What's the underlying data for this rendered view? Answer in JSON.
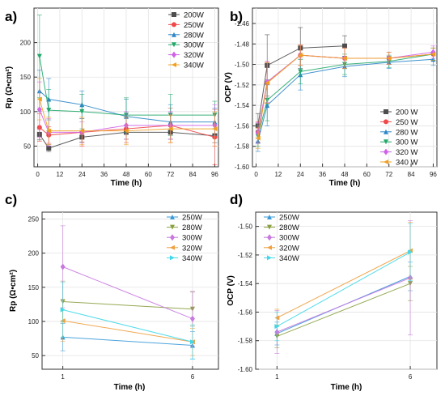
{
  "colors": {
    "200W": "#4d4d4d",
    "250W": "#f04848",
    "280W": "#2b86c8",
    "300W": "#22a86a",
    "320W": "#d060e8",
    "340W": "#f0a020",
    "panel_c_250W": "#3a9ad8",
    "panel_c_280W": "#8aa040",
    "panel_c_300W": "#c878e0",
    "panel_c_320W": "#f0a040",
    "panel_c_340W": "#40d8e8"
  },
  "chart_data": [
    {
      "panel": "a)",
      "type": "line",
      "xlabel": "Time (h)",
      "ylabel": "Rp (Ω•cm²)",
      "xlim": [
        -2,
        98
      ],
      "ylim": [
        20,
        250
      ],
      "xticks": [
        0,
        12,
        24,
        36,
        48,
        60,
        72,
        84,
        96
      ],
      "yticks": [
        50,
        100,
        150,
        200
      ],
      "legend_position": "top-right",
      "series": [
        {
          "name": "200W",
          "marker": "square",
          "x": [
            1,
            6,
            24,
            48,
            72,
            96
          ],
          "y": [
            67,
            47,
            63,
            70,
            70,
            65
          ],
          "err": [
            8,
            5,
            7,
            10,
            10,
            10
          ]
        },
        {
          "name": "250W",
          "marker": "circle",
          "x": [
            1,
            6,
            24,
            48,
            72,
            96
          ],
          "y": [
            77,
            66,
            70,
            75,
            80,
            63
          ],
          "err": [
            20,
            12,
            20,
            20,
            25,
            40
          ]
        },
        {
          "name": "280W",
          "marker": "triangle-up",
          "x": [
            1,
            6,
            24,
            48,
            72,
            96
          ],
          "y": [
            130,
            118,
            110,
            93,
            85,
            85
          ],
          "err": [
            30,
            30,
            20,
            25,
            25,
            20
          ]
        },
        {
          "name": "300W",
          "marker": "triangle-down",
          "x": [
            1,
            6,
            24,
            48,
            72,
            96
          ],
          "y": [
            180,
            102,
            100,
            95,
            95,
            95
          ],
          "err": [
            60,
            30,
            25,
            25,
            30,
            20
          ]
        },
        {
          "name": "320W",
          "marker": "diamond",
          "x": [
            1,
            6,
            24,
            48,
            72,
            96
          ],
          "y": [
            103,
            70,
            70,
            80,
            80,
            80
          ],
          "err": [
            40,
            20,
            15,
            20,
            20,
            30
          ]
        },
        {
          "name": "340W",
          "marker": "triangle-left",
          "x": [
            1,
            6,
            24,
            48,
            72,
            96
          ],
          "y": [
            118,
            72,
            72,
            72,
            75,
            75
          ],
          "err": [
            30,
            20,
            20,
            20,
            20,
            25
          ]
        }
      ]
    },
    {
      "panel": "b)",
      "type": "line",
      "xlabel": "Time (h)",
      "ylabel": "OCP (V)",
      "xlim": [
        -2,
        98
      ],
      "ylim": [
        -1.6,
        -1.445
      ],
      "xticks": [
        0,
        12,
        24,
        36,
        48,
        60,
        72,
        84,
        96
      ],
      "yticks": [
        -1.46,
        -1.48,
        -1.5,
        -1.52,
        -1.54,
        -1.56,
        -1.58,
        -1.6
      ],
      "legend_position": "bottom-right",
      "series": [
        {
          "name": "200 W",
          "marker": "square",
          "x": [
            1,
            6,
            24,
            48
          ],
          "y": [
            -1.56,
            -1.501,
            -1.484,
            -1.482
          ],
          "err": [
            0.012,
            0.03,
            0.02,
            0.01
          ]
        },
        {
          "name": "250 W",
          "marker": "circle",
          "x": [
            1,
            6,
            24,
            48,
            72,
            96
          ],
          "y": [
            -1.566,
            -1.518,
            -1.491,
            -1.494,
            -1.494,
            -1.49
          ],
          "err": [
            0.01,
            0.02,
            0.01,
            0.01,
            0.006,
            0.006
          ]
        },
        {
          "name": "280 W",
          "marker": "triangle-up",
          "x": [
            1,
            6,
            24,
            48,
            72,
            96
          ],
          "y": [
            -1.575,
            -1.54,
            -1.51,
            -1.502,
            -1.498,
            -1.495
          ],
          "err": [
            0.01,
            0.02,
            0.015,
            0.01,
            0.006,
            0.006
          ]
        },
        {
          "name": "300 W",
          "marker": "triangle-down",
          "x": [
            1,
            6,
            24,
            48,
            72,
            96
          ],
          "y": [
            -1.57,
            -1.535,
            -1.507,
            -1.5,
            -1.497,
            -1.49
          ],
          "err": [
            0.01,
            0.02,
            0.012,
            0.01,
            0.006,
            0.006
          ]
        },
        {
          "name": "320 W",
          "marker": "diamond",
          "x": [
            1,
            6,
            24,
            48,
            72,
            96
          ],
          "y": [
            -1.567,
            -1.517,
            -1.491,
            -1.494,
            -1.494,
            -1.488
          ],
          "err": [
            0.01,
            0.02,
            0.01,
            0.01,
            0.006,
            0.006
          ]
        },
        {
          "name": "340 W",
          "marker": "triangle-left",
          "x": [
            1,
            6,
            24,
            48,
            72,
            96
          ],
          "y": [
            -1.572,
            -1.518,
            -1.491,
            -1.494,
            -1.494,
            -1.49
          ],
          "err": [
            0.01,
            0.02,
            0.01,
            0.01,
            0.006,
            0.006
          ]
        }
      ]
    },
    {
      "panel": "c)",
      "type": "line",
      "xlabel": "Time (h)",
      "ylabel": "Rp (Ω•cm²)",
      "xlim": [
        0.2,
        7.0
      ],
      "ylim": [
        30,
        260
      ],
      "xticks": [
        1,
        6
      ],
      "yticks": [
        50,
        100,
        150,
        200,
        250
      ],
      "legend_position": "top-right",
      "series": [
        {
          "name": "250W",
          "marker": "triangle-up",
          "x": [
            1,
            6
          ],
          "y": [
            77,
            65
          ],
          "err": [
            20,
            20
          ]
        },
        {
          "name": "280W",
          "marker": "triangle-down",
          "x": [
            1,
            6
          ],
          "y": [
            129,
            118
          ],
          "err": [
            30,
            25
          ]
        },
        {
          "name": "300W",
          "marker": "diamond",
          "x": [
            1,
            6
          ],
          "y": [
            180,
            104
          ],
          "err": [
            60,
            40
          ]
        },
        {
          "name": "320W",
          "marker": "triangle-left",
          "x": [
            1,
            6
          ],
          "y": [
            101,
            70
          ],
          "err": [
            30,
            20
          ]
        },
        {
          "name": "340W",
          "marker": "triangle-right",
          "x": [
            1,
            6
          ],
          "y": [
            117,
            70
          ],
          "err": [
            40,
            25
          ]
        }
      ]
    },
    {
      "panel": "d)",
      "type": "line",
      "xlabel": "Time (h)",
      "ylabel": "OCP (V)",
      "xlim": [
        0.2,
        7.0
      ],
      "ylim": [
        -1.6,
        -1.49
      ],
      "xticks": [
        1,
        6
      ],
      "yticks": [
        -1.5,
        -1.52,
        -1.54,
        -1.56,
        -1.58,
        -1.6
      ],
      "legend_position": "top-left",
      "series": [
        {
          "name": "250W",
          "marker": "triangle-up",
          "x": [
            1,
            6
          ],
          "y": [
            -1.575,
            -1.535
          ],
          "err": [
            0.008,
            0.01
          ]
        },
        {
          "name": "280W",
          "marker": "triangle-down",
          "x": [
            1,
            6
          ],
          "y": [
            -1.577,
            -1.54
          ],
          "err": [
            0.008,
            0.012
          ]
        },
        {
          "name": "300W",
          "marker": "diamond",
          "x": [
            1,
            6
          ],
          "y": [
            -1.574,
            -1.536
          ],
          "err": [
            0.015,
            0.04
          ]
        },
        {
          "name": "320W",
          "marker": "triangle-left",
          "x": [
            1,
            6
          ],
          "y": [
            -1.564,
            -1.517
          ],
          "err": [
            0.006,
            0.02
          ]
        },
        {
          "name": "340W",
          "marker": "triangle-right",
          "x": [
            1,
            6
          ],
          "y": [
            -1.57,
            -1.518
          ],
          "err": [
            0.01,
            0.02
          ]
        }
      ]
    }
  ]
}
